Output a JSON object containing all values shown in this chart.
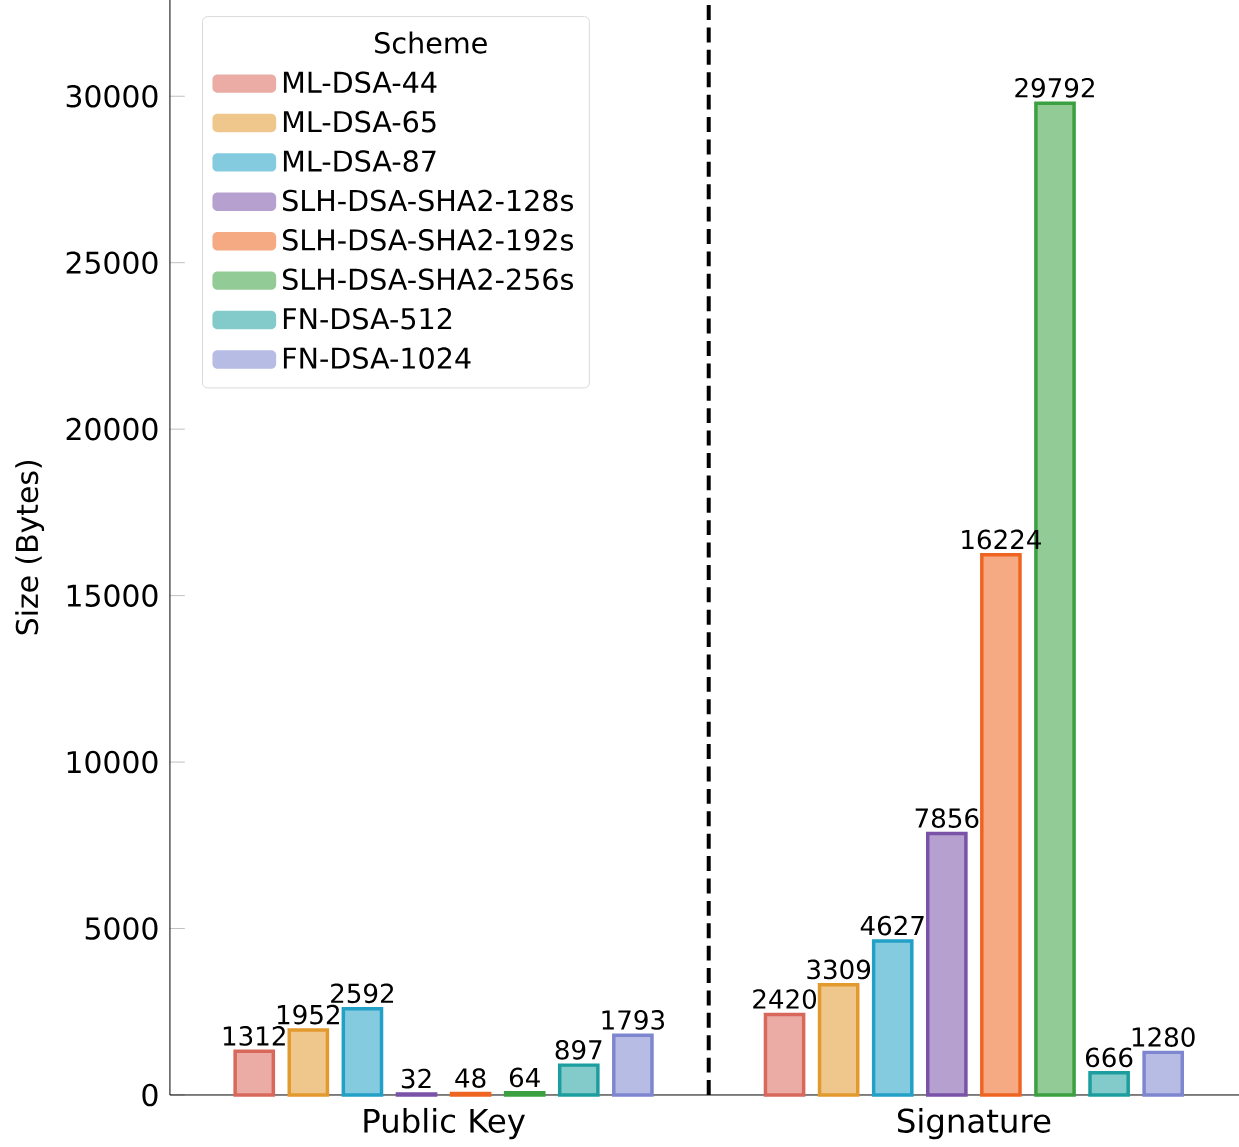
{
  "chart_data": {
    "type": "bar",
    "ylabel": "Size (Bytes)",
    "legend_title": "Scheme",
    "categories": [
      "Public Key",
      "Signature"
    ],
    "series": [
      {
        "name": "ML-DSA-44",
        "color": "#d9685c",
        "values": [
          1312,
          2420
        ]
      },
      {
        "name": "ML-DSA-65",
        "color": "#e29a2e",
        "values": [
          1952,
          3309
        ]
      },
      {
        "name": "ML-DSA-87",
        "color": "#22a0c6",
        "values": [
          2592,
          4627
        ]
      },
      {
        "name": "SLH-DSA-SHA2-128s",
        "color": "#7a52a8",
        "values": [
          32,
          7856
        ]
      },
      {
        "name": "SLH-DSA-SHA2-192s",
        "color": "#ef6420",
        "values": [
          48,
          16224
        ]
      },
      {
        "name": "SLH-DSA-SHA2-256s",
        "color": "#3aa040",
        "values": [
          64,
          29792
        ]
      },
      {
        "name": "FN-DSA-512",
        "color": "#1d9e9e",
        "values": [
          897,
          666
        ]
      },
      {
        "name": "FN-DSA-1024",
        "color": "#7d86cf",
        "values": [
          1793,
          1280
        ]
      }
    ],
    "ylim": [
      0,
      32900
    ],
    "yticks": [
      0,
      5000,
      10000,
      15000,
      20000,
      25000,
      30000
    ],
    "data_labels": true,
    "legend": "top left",
    "grid": false
  }
}
